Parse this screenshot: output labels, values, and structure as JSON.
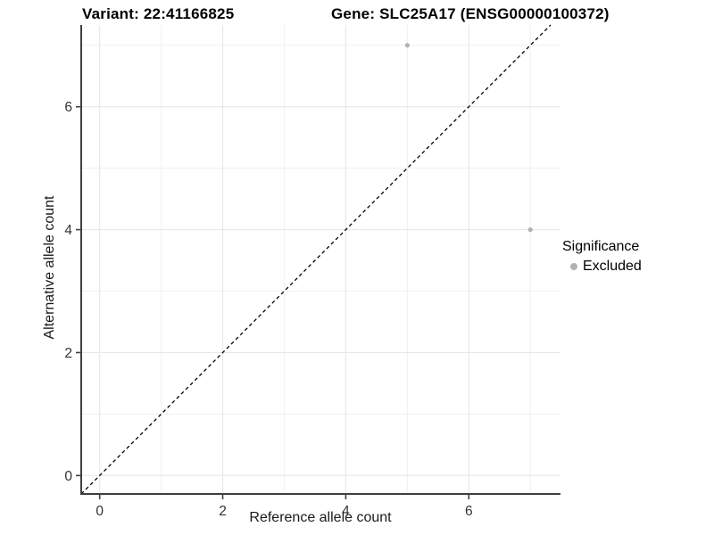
{
  "header": {
    "variant_title": "Variant: 22:41166825",
    "gene_title": "Gene: SLC25A17 (ENSG00000100372)"
  },
  "chart_data": {
    "type": "scatter",
    "xlabel": "Reference allele count",
    "ylabel": "Alternative allele count",
    "xlim": [
      -0.3,
      7.49
    ],
    "ylim": [
      -0.3,
      7.33
    ],
    "x_ticks": [
      0,
      2,
      4,
      6
    ],
    "y_ticks": [
      0,
      2,
      4,
      6
    ],
    "minor_gridlines_x": [
      1,
      3,
      5,
      7
    ],
    "minor_gridlines_y": [
      1,
      3,
      5,
      7
    ],
    "grid": "major and minor light-gray gridlines on white panel",
    "series": [
      {
        "name": "Excluded",
        "marker": "circle",
        "color": "#b3b3b3",
        "points": [
          {
            "x": 5,
            "y": 7
          },
          {
            "x": 7,
            "y": 4
          }
        ]
      }
    ],
    "reference_line": {
      "kind": "identity y = x",
      "style": "dashed",
      "color": "#000000"
    },
    "legend": {
      "position": "right-middle",
      "title": "Significance",
      "items": [
        {
          "label": "Excluded",
          "color": "#b3b3b3"
        }
      ]
    },
    "colors": {
      "background": "#ffffff",
      "axis_line": "#404040",
      "tick_label": "#333333",
      "grid_major": "#e8e8e8",
      "grid_minor": "#f2f2f2"
    }
  }
}
